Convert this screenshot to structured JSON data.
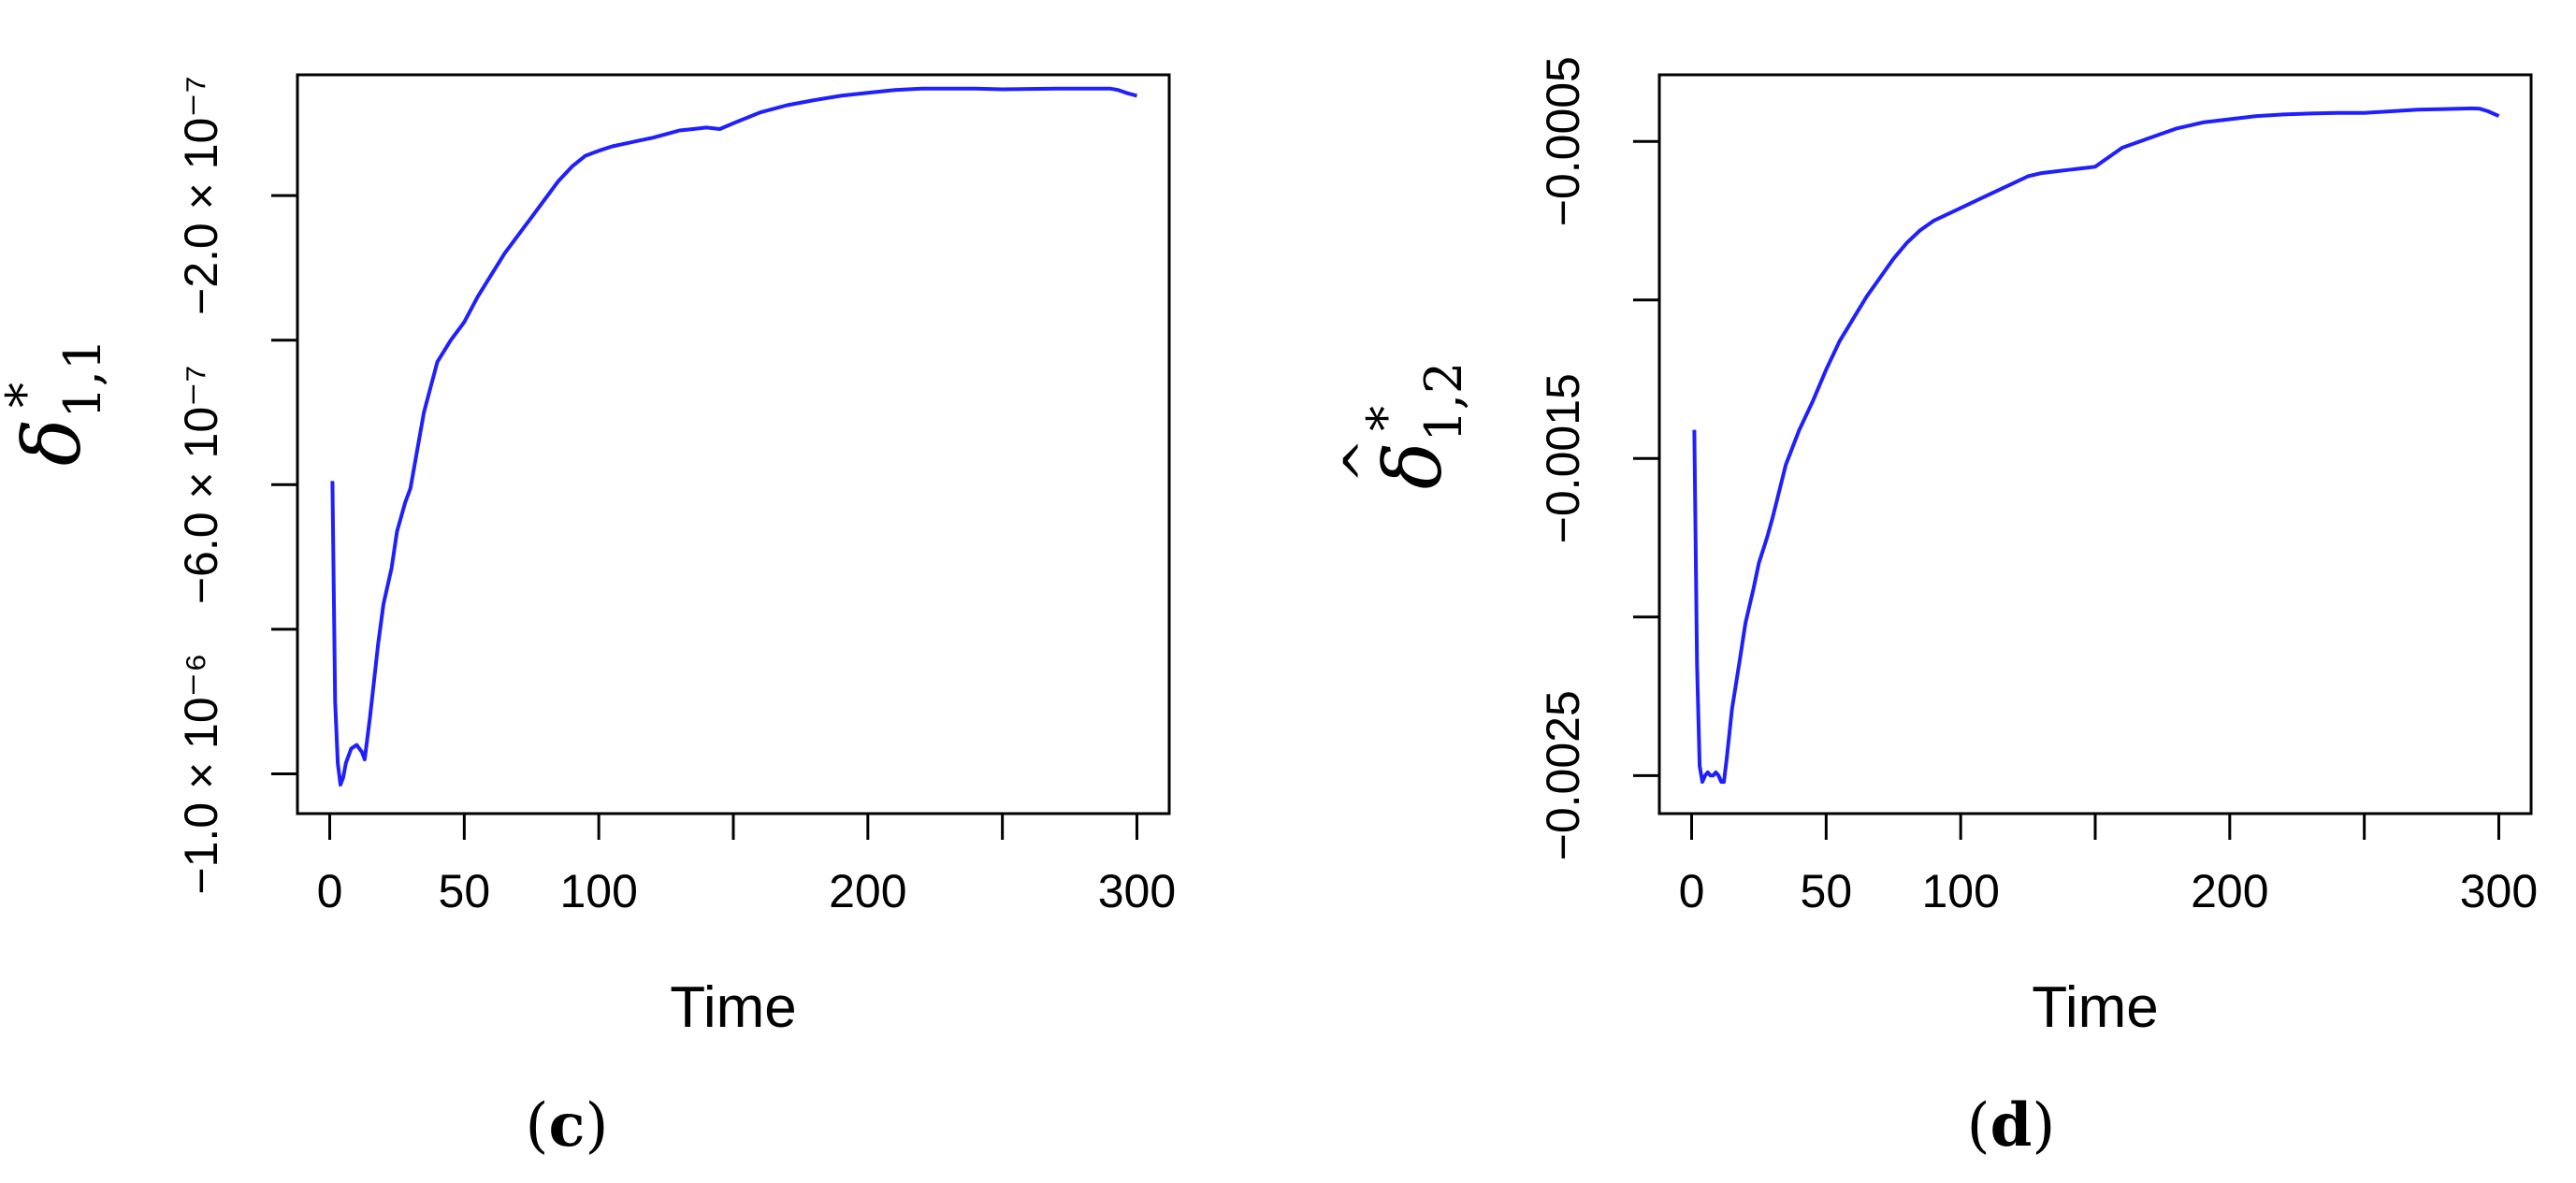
{
  "chart_data": [
    {
      "type": "line",
      "panel_label": "c",
      "xlabel": "Time",
      "ylabel": {
        "symbol": "δ",
        "hat": "^",
        "superscript": "*",
        "subscript": "1,1"
      },
      "x_ticks": [
        0,
        50,
        100,
        150,
        200,
        250,
        300
      ],
      "x_tick_labels": [
        "0",
        "50",
        "100",
        "",
        "200",
        "",
        "300"
      ],
      "y_ticks": [
        -1e-06,
        -8e-07,
        -6e-07,
        -4e-07,
        -2e-07
      ],
      "y_tick_labels": [
        "−1.0 × 10⁻⁶",
        "",
        "−6.0 × 10⁻⁷",
        "",
        "−2.0 × 10⁻⁷"
      ],
      "xlim": [
        -12,
        312
      ],
      "ylim": [
        -1.055e-06,
        -3.3e-08
      ],
      "line_color": "#1f1fff",
      "series": [
        {
          "x": [
            1,
            2,
            3,
            4,
            5,
            6,
            8,
            10,
            12,
            13,
            15,
            18,
            20,
            23,
            25,
            28,
            30,
            35,
            40,
            45,
            50,
            55,
            60,
            65,
            70,
            75,
            80,
            85,
            90,
            95,
            100,
            105,
            110,
            115,
            120,
            125,
            130,
            135,
            140,
            145,
            150,
            160,
            170,
            180,
            190,
            200,
            210,
            220,
            230,
            240,
            250,
            260,
            270,
            280,
            290,
            293,
            296,
            300
          ],
          "y": [
            -5.95e-07,
            -9e-07,
            -9.85e-07,
            -1.015e-06,
            -1.005e-06,
            -9.85e-07,
            -9.65e-07,
            -9.6e-07,
            -9.7e-07,
            -9.8e-07,
            -9.2e-07,
            -8.2e-07,
            -7.65e-07,
            -7.15e-07,
            -6.65e-07,
            -6.25e-07,
            -6.05e-07,
            -5e-07,
            -4.3e-07,
            -4e-07,
            -3.75e-07,
            -3.4e-07,
            -3.1e-07,
            -2.8e-07,
            -2.55e-07,
            -2.3e-07,
            -2.05e-07,
            -1.8e-07,
            -1.6e-07,
            -1.45e-07,
            -1.38e-07,
            -1.32e-07,
            -1.28e-07,
            -1.24e-07,
            -1.2e-07,
            -1.15e-07,
            -1.1e-07,
            -1.08e-07,
            -1.06e-07,
            -1.08e-07,
            -1e-07,
            -8.5e-08,
            -7.5e-08,
            -6.8e-08,
            -6.2e-08,
            -5.8e-08,
            -5.4e-08,
            -5.2e-08,
            -5.2e-08,
            -5.2e-08,
            -5.3e-08,
            -5.25e-08,
            -5.2e-08,
            -5.2e-08,
            -5.2e-08,
            -5.4e-08,
            -5.8e-08,
            -6.2e-08
          ]
        }
      ]
    },
    {
      "type": "line",
      "panel_label": "d",
      "xlabel": "Time",
      "ylabel": {
        "symbol": "δ",
        "hat": "^",
        "superscript": "*",
        "subscript": "1,2"
      },
      "x_ticks": [
        0,
        50,
        100,
        150,
        200,
        250,
        300
      ],
      "x_tick_labels": [
        "0",
        "50",
        "100",
        "",
        "200",
        "",
        "300"
      ],
      "y_ticks": [
        -0.0025,
        -0.002,
        -0.0015,
        -0.001,
        -0.0005
      ],
      "y_tick_labels": [
        "−0.0025",
        "",
        "−0.0015",
        "",
        "−0.0005"
      ],
      "xlim": [
        -12,
        312
      ],
      "ylim": [
        -0.00262,
        -0.00029
      ],
      "line_color": "#1f1fff",
      "series": [
        {
          "x": [
            1,
            2,
            3,
            4,
            5,
            6,
            7,
            8,
            9,
            10,
            11,
            12,
            13,
            15,
            18,
            20,
            23,
            25,
            28,
            30,
            35,
            40,
            45,
            50,
            55,
            60,
            65,
            70,
            75,
            80,
            85,
            90,
            95,
            100,
            105,
            110,
            115,
            120,
            125,
            130,
            135,
            140,
            145,
            150,
            160,
            170,
            180,
            190,
            200,
            210,
            220,
            230,
            240,
            250,
            260,
            270,
            280,
            290,
            293,
            296,
            300
          ],
          "y": [
            -0.00141,
            -0.00215,
            -0.00247,
            -0.00252,
            -0.0025,
            -0.00249,
            -0.0025,
            -0.0025,
            -0.00249,
            -0.0025,
            -0.00252,
            -0.00252,
            -0.00245,
            -0.00229,
            -0.00213,
            -0.00202,
            -0.00191,
            -0.00183,
            -0.00175,
            -0.00169,
            -0.00152,
            -0.00141,
            -0.00132,
            -0.00122,
            -0.00113,
            -0.00106,
            -0.00099,
            -0.00093,
            -0.00087,
            -0.00082,
            -0.00078,
            -0.00075,
            -0.00073,
            -0.00071,
            -0.00069,
            -0.00067,
            -0.00065,
            -0.00063,
            -0.00061,
            -0.0006,
            -0.000595,
            -0.00059,
            -0.000585,
            -0.00058,
            -0.00052,
            -0.00049,
            -0.00046,
            -0.00044,
            -0.00043,
            -0.00042,
            -0.000415,
            -0.000412,
            -0.00041,
            -0.00041,
            -0.000405,
            -0.0004,
            -0.000398,
            -0.000396,
            -0.000397,
            -0.000405,
            -0.00042
          ]
        }
      ]
    }
  ]
}
